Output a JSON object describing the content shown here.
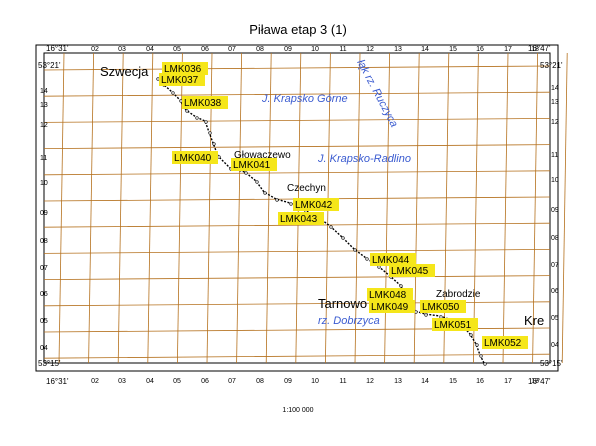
{
  "title": "Piława etap 3 (1)",
  "scale": "1:100 000",
  "colors": {
    "grid": "#b5711e",
    "label_bg": "#f5e61a",
    "water_text": "#3a5bd0",
    "route": "#000000"
  },
  "corners": {
    "top_left_lon": "16°31'",
    "top_right_lon": "16°47'",
    "bottom_left_lon": "16°31'",
    "bottom_right_lon": "16°47'",
    "top_left_lat": "53°21'",
    "top_right_lat": "53°21'",
    "bottom_left_lat": "53°15'",
    "bottom_right_lat": "53°15'"
  },
  "x_ticks": [
    "02",
    "03",
    "04",
    "05",
    "06",
    "07",
    "08",
    "09",
    "10",
    "11",
    "12",
    "13",
    "14",
    "15",
    "16",
    "17",
    "18"
  ],
  "y_ticks": [
    "14",
    "13",
    "12",
    "11",
    "10",
    "09",
    "08",
    "07",
    "06",
    "05",
    "04"
  ],
  "places": [
    {
      "id": "szwecja",
      "label": "Szwecja",
      "big": true
    },
    {
      "id": "glowaczewo",
      "label": "Głowaczewo",
      "big": false
    },
    {
      "id": "czechyn",
      "label": "Czechyn",
      "big": false
    },
    {
      "id": "tarnowo",
      "label": "Tarnowo",
      "big": true
    },
    {
      "id": "zabrodzie",
      "label": "Zabrodzie",
      "big": false
    },
    {
      "id": "krepsk",
      "label": "Kre",
      "big": true
    }
  ],
  "water": [
    {
      "id": "krapsko-gorne",
      "label": "J. Krapsko Górne"
    },
    {
      "id": "krapsko-radlino",
      "label": "J. Krapsko-Radlino"
    },
    {
      "id": "ruczyca",
      "label": "łąk rz. Ruczyca"
    },
    {
      "id": "dobrzyca",
      "label": "rz. Dobrzyca"
    }
  ],
  "markers": [
    "LMK036",
    "LMK037",
    "LMK038",
    "LMK040",
    "LMK041",
    "LMK042",
    "LMK043",
    "LMK044",
    "LMK045",
    "LMK048",
    "LMK049",
    "LMK050",
    "LMK051",
    "LMK052"
  ]
}
